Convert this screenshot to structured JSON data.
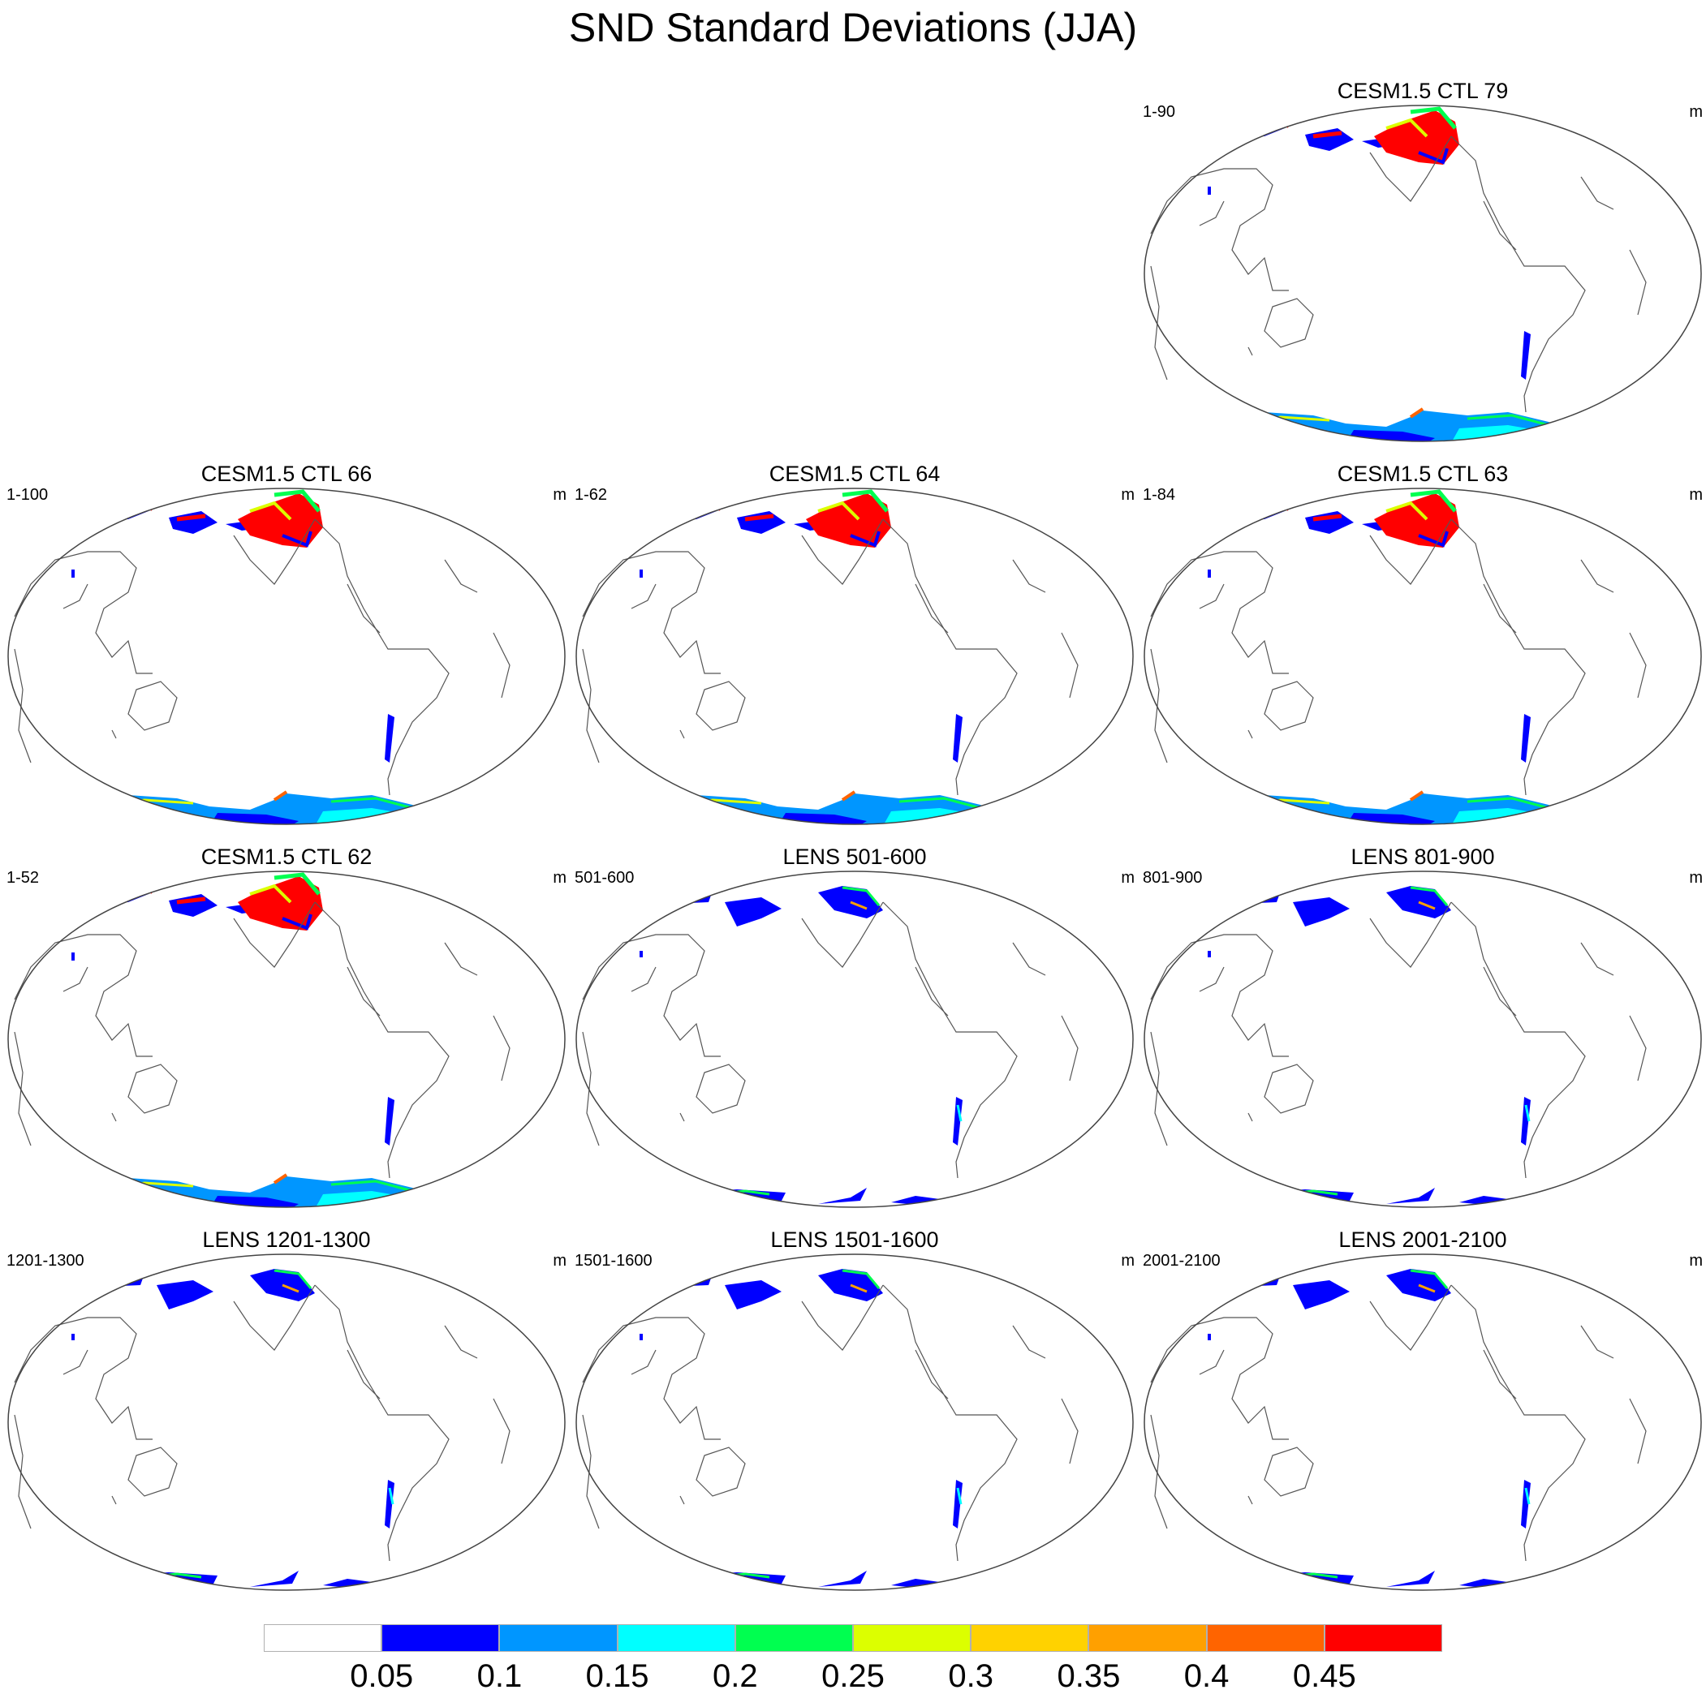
{
  "title": "SND Standard Deviations (JJA)",
  "panels": [
    {
      "title": "CESM1.5 CTL 79",
      "range": "1-90",
      "unit": "m",
      "intensity": "high",
      "row": 0,
      "col": 2
    },
    {
      "title": "CESM1.5 CTL 66",
      "range": "1-100",
      "unit": "m",
      "intensity": "high",
      "row": 1,
      "col": 0
    },
    {
      "title": "CESM1.5 CTL 64",
      "range": "1-62",
      "unit": "m",
      "intensity": "high",
      "row": 1,
      "col": 1
    },
    {
      "title": "CESM1.5 CTL 63",
      "range": "1-84",
      "unit": "m",
      "intensity": "high",
      "row": 1,
      "col": 2
    },
    {
      "title": "CESM1.5 CTL 62",
      "range": "1-52",
      "unit": "m",
      "intensity": "high",
      "row": 2,
      "col": 0
    },
    {
      "title": "LENS 501-600",
      "range": "501-600",
      "unit": "m",
      "intensity": "low",
      "row": 2,
      "col": 1
    },
    {
      "title": "LENS 801-900",
      "range": "801-900",
      "unit": "m",
      "intensity": "low",
      "row": 2,
      "col": 2
    },
    {
      "title": "LENS 1201-1300",
      "range": "1201-1300",
      "unit": "m",
      "intensity": "low",
      "row": 3,
      "col": 0
    },
    {
      "title": "LENS 1501-1600",
      "range": "1501-1600",
      "unit": "m",
      "intensity": "low",
      "row": 3,
      "col": 1
    },
    {
      "title": "LENS 2001-2100",
      "range": "2001-2100",
      "unit": "m",
      "intensity": "low",
      "row": 3,
      "col": 2
    }
  ],
  "colorbar": {
    "colors": [
      "#ffffff",
      "#0000ff",
      "#0096ff",
      "#00ffff",
      "#00ff50",
      "#dcff00",
      "#ffd200",
      "#ffa000",
      "#ff6400",
      "#ff0000"
    ],
    "labels": [
      "0.05",
      "0.1",
      "0.15",
      "0.2",
      "0.25",
      "0.3",
      "0.35",
      "0.4",
      "0.45"
    ]
  }
}
